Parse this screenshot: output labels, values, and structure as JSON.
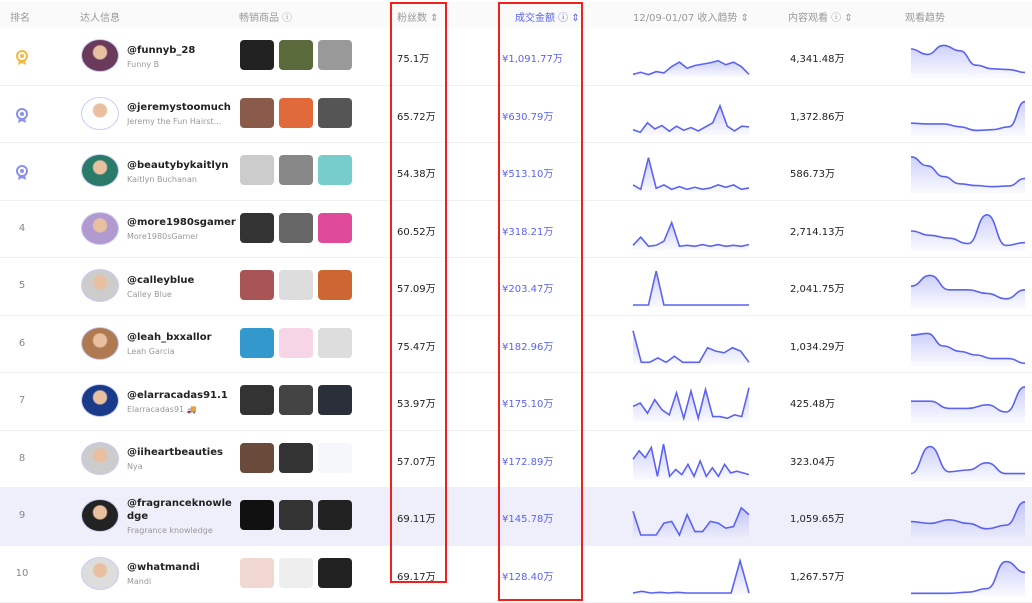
{
  "header": {
    "rank": "排名",
    "influencer": "达人信息",
    "products": "畅销商品 ⓘ",
    "fans": "粉丝数 ⇕",
    "gmv": "成交金额 ⓘ ⇕",
    "income_trend": "12/09-01/07 收入趋势 ⇕",
    "views": "内容观看 ⓘ ⇕",
    "view_trend": "观看趋势"
  },
  "colors": {
    "accent": "#5b63f0",
    "highlight_box": "#f0201a",
    "gold": "#f5b942",
    "silver": "#8a90f0"
  },
  "rows": [
    {
      "rank": "1",
      "rank_icon": "gold-medal-icon",
      "handle": "@funnyb_28",
      "name": "Funny B",
      "fans": "75.1万",
      "gmv": "¥1,091.77万",
      "views": "4,341.48万",
      "income": [
        2,
        8,
        1,
        10,
        6,
        25,
        38,
        20,
        28,
        32,
        36,
        42,
        30,
        38,
        25,
        2
      ],
      "viewtrend": [
        75,
        60,
        85,
        70,
        30,
        20,
        18,
        10
      ]
    },
    {
      "rank": "2",
      "rank_icon": "silver-medal-icon",
      "handle": "@jeremystoomuch",
      "name": "Jeremy the Fun Hairst...",
      "fans": "65.72万",
      "gmv": "¥630.79万",
      "views": "1,372.86万",
      "income": [
        10,
        2,
        30,
        12,
        22,
        5,
        20,
        8,
        16,
        6,
        18,
        30,
        80,
        20,
        6,
        20,
        18
      ],
      "viewtrend": [
        30,
        28,
        28,
        20,
        10,
        12,
        20,
        90
      ]
    },
    {
      "rank": "3",
      "rank_icon": "bronze-medal-icon",
      "handle": "@beautybykaitlyn",
      "name": "Kaitlyn Buchanan",
      "fans": "54.38万",
      "gmv": "¥513.10万",
      "views": "586.73万",
      "income": [
        15,
        2,
        95,
        5,
        15,
        2,
        10,
        2,
        8,
        2,
        6,
        15,
        8,
        15,
        2,
        6
      ],
      "viewtrend": [
        95,
        70,
        40,
        20,
        15,
        12,
        14,
        35
      ]
    },
    {
      "rank": "4",
      "handle": "@more1980sgamer",
      "name": "More1980sGamer",
      "fans": "60.52万",
      "gmv": "¥318.21万",
      "views": "2,714.13万",
      "income": [
        8,
        32,
        5,
        8,
        20,
        75,
        5,
        8,
        5,
        10,
        5,
        10,
        5,
        8,
        5,
        10
      ],
      "viewtrend": [
        50,
        38,
        30,
        15,
        95,
        10,
        18
      ]
    },
    {
      "rank": "5",
      "handle": "@calleyblue",
      "name": "Calley Blue",
      "fans": "57.09万",
      "gmv": "¥203.47万",
      "views": "2,041.75万",
      "income": [
        0,
        0,
        0,
        100,
        0,
        0,
        0,
        0,
        0,
        0,
        0,
        0,
        0,
        0,
        0,
        0
      ],
      "viewtrend": [
        55,
        85,
        45,
        45,
        35,
        20,
        45
      ]
    },
    {
      "rank": "6",
      "handle": "@leah_bxxallor",
      "name": "Leah Garcia",
      "fans": "75.47万",
      "gmv": "¥182.96万",
      "views": "1,034.29万",
      "income": [
        95,
        2,
        2,
        15,
        2,
        20,
        2,
        2,
        2,
        45,
        35,
        30,
        45,
        35,
        2
      ],
      "viewtrend": [
        80,
        85,
        50,
        35,
        25,
        15,
        15,
        2
      ]
    },
    {
      "rank": "7",
      "handle": "@elarracadas91.1",
      "name": "Elarracadas91 🚚",
      "fans": "53.97万",
      "gmv": "¥175.10万",
      "views": "425.48万",
      "income": [
        40,
        50,
        20,
        60,
        30,
        15,
        80,
        5,
        85,
        5,
        90,
        10,
        10,
        5,
        15,
        10,
        95
      ],
      "viewtrend": [
        55,
        55,
        35,
        35,
        45,
        25,
        95
      ]
    },
    {
      "rank": "8",
      "handle": "@iiheartbeauties",
      "name": "Nya",
      "fans": "57.07万",
      "gmv": "¥172.89万",
      "views": "323.04万",
      "income": [
        55,
        80,
        60,
        90,
        5,
        100,
        5,
        25,
        10,
        40,
        5,
        50,
        5,
        30,
        5,
        40,
        15,
        20,
        15,
        10
      ],
      "viewtrend": [
        15,
        90,
        20,
        25,
        45,
        15,
        15
      ]
    },
    {
      "rank": "9",
      "handle": "@fragranceknowledge",
      "name": "Fragrance knowledge",
      "fans": "69.11万",
      "gmv": "¥145.78万",
      "views": "1,059.65万",
      "income": [
        70,
        0,
        0,
        0,
        35,
        40,
        0,
        60,
        10,
        10,
        40,
        35,
        20,
        25,
        80,
        60
      ],
      "viewtrend": [
        40,
        35,
        45,
        35,
        20,
        30,
        95
      ]
    },
    {
      "rank": "10",
      "handle": "@whatmandi",
      "name": "Mandi",
      "fans": "69.17万",
      "gmv": "¥128.40万",
      "views": "1,267.57万",
      "income": [
        0,
        5,
        0,
        2,
        0,
        2,
        0,
        0,
        0,
        0,
        0,
        0,
        95,
        0
      ],
      "viewtrend": [
        2,
        2,
        2,
        5,
        15,
        90,
        60
      ]
    }
  ]
}
